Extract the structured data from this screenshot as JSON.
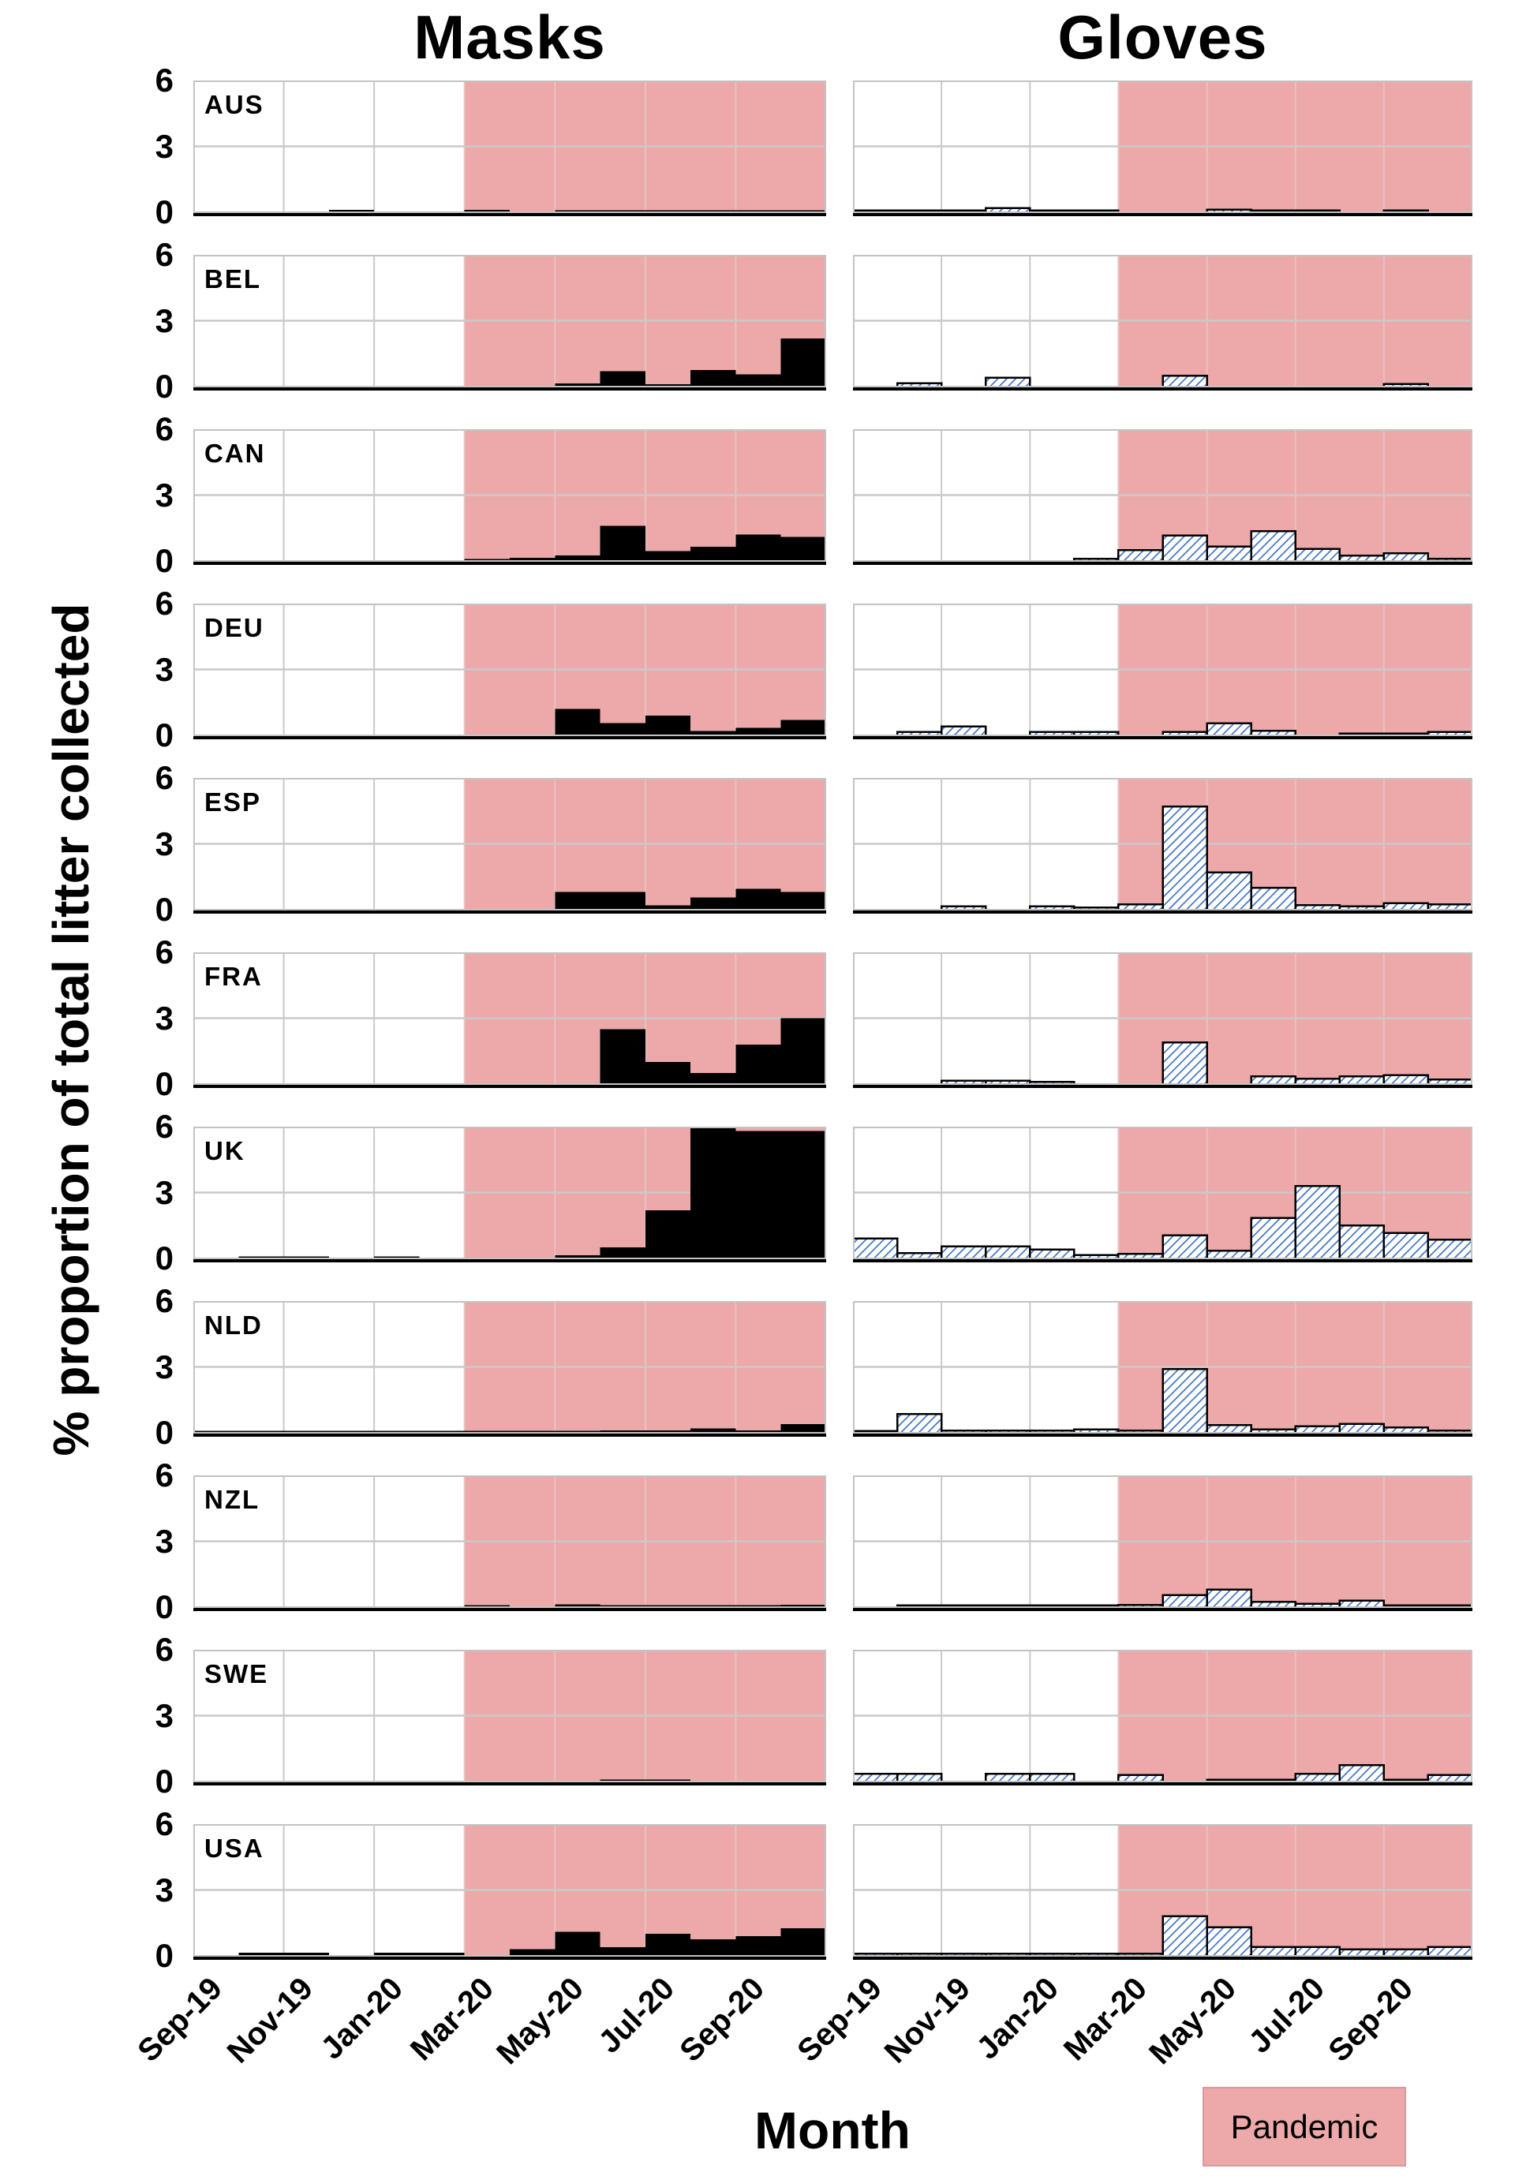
{
  "titles": {
    "left_column": "Masks",
    "right_column": "Gloves",
    "y_axis": "% proportion of total litter collected",
    "x_axis": "Month"
  },
  "legend": {
    "label": "Pandemic",
    "color": "#eda9a9"
  },
  "chart_data": {
    "type": "bar",
    "description": "Small-multiple monthly bar charts of masks (solid black) and gloves (blue-hatched) as % of total litter collected per country; pink band marks pandemic months.",
    "months": [
      "Sep-19",
      "Oct-19",
      "Nov-19",
      "Dec-19",
      "Jan-20",
      "Feb-20",
      "Mar-20",
      "Apr-20",
      "May-20",
      "Jun-20",
      "Jul-20",
      "Aug-20",
      "Sep-20",
      "Oct-20"
    ],
    "x_tick_labels": [
      "Sep-19",
      "Nov-19",
      "Jan-20",
      "Mar-20",
      "May-20",
      "Jul-20",
      "Sep-20"
    ],
    "ylim": [
      0,
      6
    ],
    "yticks": [
      6,
      3,
      0
    ],
    "pandemic_start_month": "Mar-20",
    "pandemic_start_index": 6,
    "grid": true,
    "colors": {
      "masks_bar": "#000000",
      "gloves_hatch": "#3f74c4",
      "gloves_fill": "#ffffff",
      "pandemic_band": "#eda9a9",
      "gridline": "#c9c9c9",
      "gridline_on_band": "#e6c2c2",
      "panel_border": "#c3c3c3",
      "axis_line": "#000000"
    },
    "countries": [
      {
        "code": "AUS",
        "masks": [
          0,
          0,
          0,
          0.1,
          0,
          0,
          0.1,
          0,
          0.07,
          0.07,
          0.07,
          0.07,
          0.07,
          0.07
        ],
        "gloves": [
          0.05,
          0.05,
          0.05,
          0.18,
          0.05,
          0.05,
          0,
          0,
          0.12,
          0.06,
          0.06,
          0,
          0.08,
          0
        ]
      },
      {
        "code": "BEL",
        "masks": [
          0,
          0,
          0,
          0,
          0,
          0,
          0,
          0,
          0.15,
          0.7,
          0.1,
          0.75,
          0.55,
          2.2
        ],
        "gloves": [
          0,
          0.15,
          0,
          0.4,
          0,
          0,
          0,
          0.5,
          0,
          0,
          0,
          0,
          0.12,
          0
        ]
      },
      {
        "code": "CAN",
        "masks": [
          0,
          0,
          0,
          0,
          0,
          0,
          0.05,
          0.15,
          0.25,
          1.6,
          0.45,
          0.65,
          1.2,
          1.1
        ],
        "gloves": [
          0,
          0,
          0,
          0,
          0,
          0.1,
          0.5,
          1.15,
          0.65,
          1.35,
          0.55,
          0.25,
          0.35,
          0.1
        ]
      },
      {
        "code": "DEU",
        "masks": [
          0,
          0,
          0,
          0,
          0,
          0,
          0,
          0,
          1.2,
          0.55,
          0.9,
          0.2,
          0.35,
          0.7
        ],
        "gloves": [
          0,
          0.15,
          0.4,
          0,
          0.15,
          0.15,
          0,
          0.15,
          0.55,
          0.2,
          0,
          0.08,
          0.08,
          0.15
        ]
      },
      {
        "code": "ESP",
        "masks": [
          0,
          0,
          0,
          0,
          0,
          0,
          0,
          0,
          0.8,
          0.8,
          0.2,
          0.55,
          0.95,
          0.8
        ],
        "gloves": [
          0,
          0,
          0.15,
          0,
          0.15,
          0.1,
          0.25,
          4.7,
          1.7,
          1.0,
          0.2,
          0.15,
          0.3,
          0.25
        ]
      },
      {
        "code": "FRA",
        "masks": [
          0,
          0,
          0,
          0,
          0,
          0,
          0,
          0,
          0,
          2.5,
          1.0,
          0.5,
          1.8,
          3.0
        ],
        "gloves": [
          0,
          0,
          0.15,
          0.15,
          0.1,
          0,
          0,
          1.9,
          0,
          0.35,
          0.25,
          0.35,
          0.4,
          0.2
        ]
      },
      {
        "code": "UK",
        "masks": [
          0,
          0.07,
          0.07,
          0,
          0.07,
          0,
          0,
          0,
          0.15,
          0.5,
          2.2,
          6.5,
          5.8,
          5.8
        ],
        "gloves": [
          0.9,
          0.25,
          0.55,
          0.55,
          0.4,
          0.15,
          0.2,
          1.05,
          0.35,
          1.85,
          3.3,
          1.5,
          1.15,
          0.85
        ]
      },
      {
        "code": "NLD",
        "masks": [
          0.05,
          0.05,
          0.05,
          0.05,
          0.05,
          0.05,
          0.05,
          0.05,
          0.08,
          0.1,
          0.1,
          0.2,
          0.1,
          0.4
        ],
        "gloves": [
          0.08,
          0.85,
          0.1,
          0.1,
          0.1,
          0.15,
          0.1,
          2.9,
          0.35,
          0.15,
          0.3,
          0.4,
          0.25,
          0.1
        ]
      },
      {
        "code": "NZL",
        "masks": [
          0,
          0,
          0,
          0,
          0,
          0,
          0.08,
          0,
          0.12,
          0.05,
          0.05,
          0.05,
          0.05,
          0.1
        ],
        "gloves": [
          0,
          0.07,
          0.07,
          0.07,
          0.07,
          0.07,
          0.1,
          0.55,
          0.8,
          0.25,
          0.15,
          0.3,
          0.08,
          0.08
        ]
      },
      {
        "code": "SWE",
        "masks": [
          0,
          0,
          0,
          0,
          0,
          0,
          0,
          0,
          0,
          0.08,
          0.08,
          0,
          0,
          0
        ],
        "gloves": [
          0.35,
          0.35,
          0,
          0.35,
          0.35,
          0,
          0.3,
          0,
          0.07,
          0.07,
          0.35,
          0.75,
          0.07,
          0.3
        ]
      },
      {
        "code": "USA",
        "masks": [
          0,
          0.15,
          0.15,
          0,
          0.15,
          0.15,
          0,
          0.3,
          1.1,
          0.4,
          1.0,
          0.75,
          0.9,
          1.25
        ],
        "gloves": [
          0.1,
          0.1,
          0.1,
          0.1,
          0.1,
          0.1,
          0.1,
          1.8,
          1.3,
          0.4,
          0.4,
          0.3,
          0.3,
          0.4
        ]
      }
    ]
  }
}
